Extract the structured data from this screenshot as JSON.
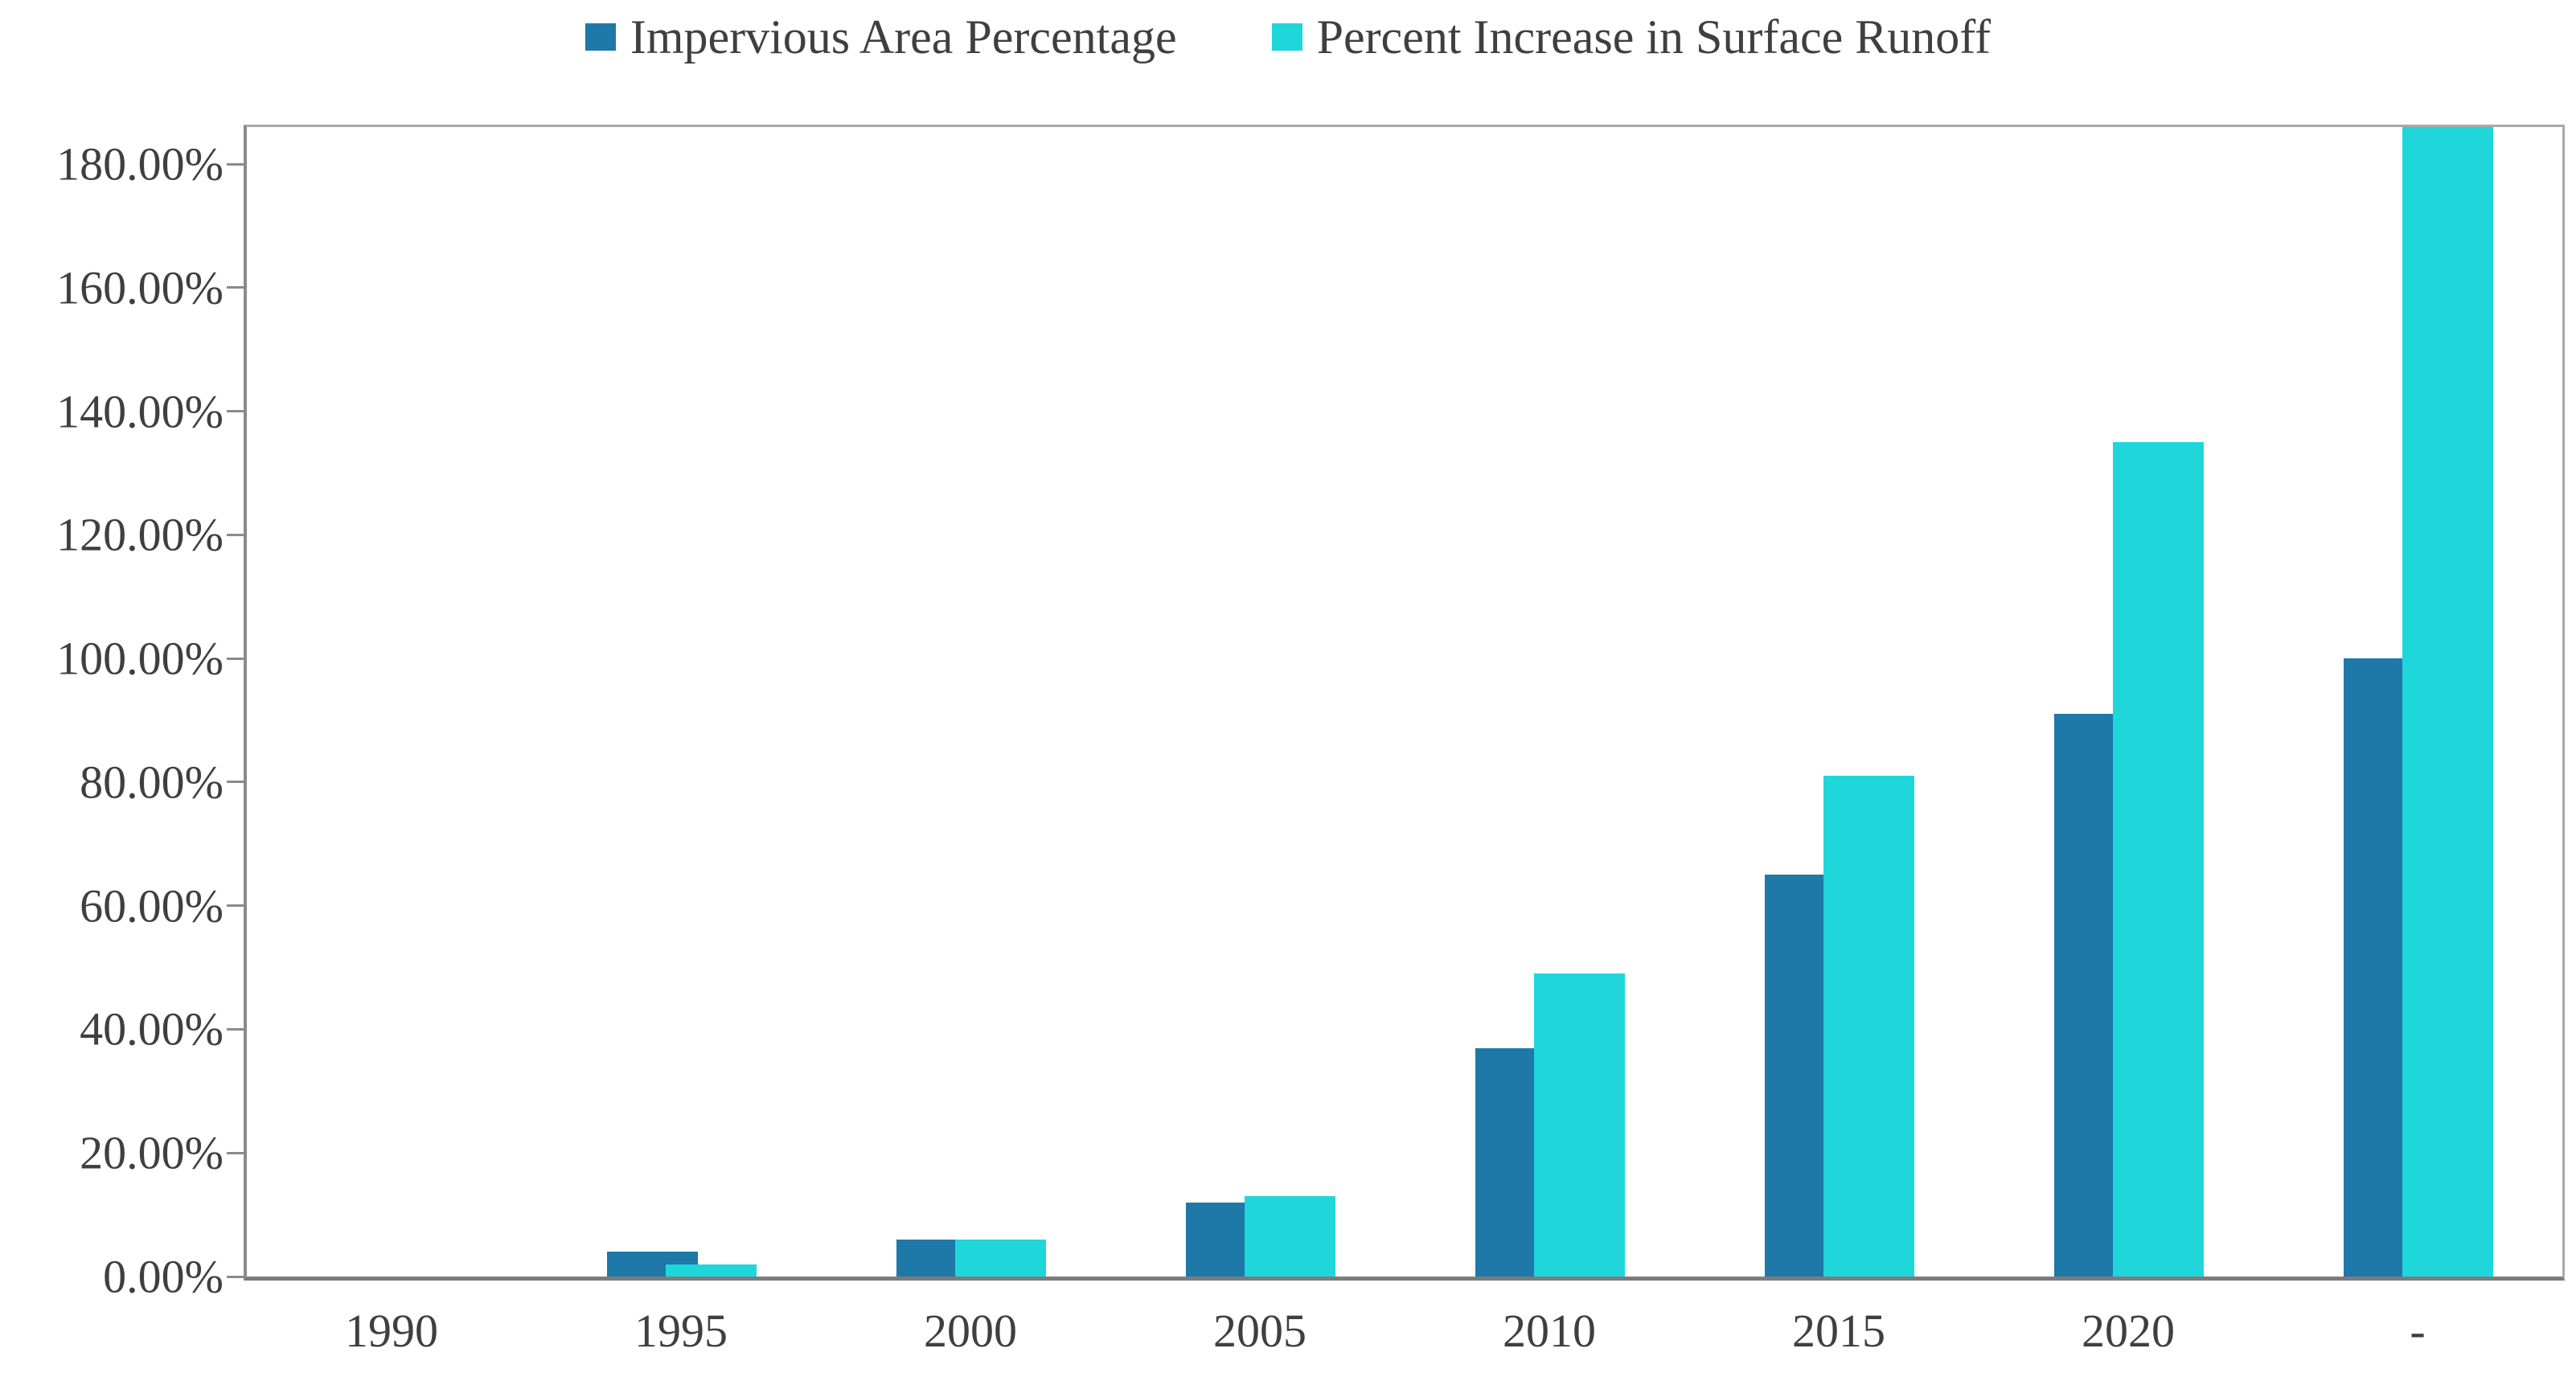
{
  "colors": {
    "background": "#FFFFFF",
    "text": "#3F3F3F",
    "frame": "#A9A9A9",
    "axis_left": "#8A8A8A",
    "axis_bottom": "#7C7C7C",
    "tick": "#8A8A8A",
    "series_blue": "#1E78A8",
    "series_cyan": "#1FD6DA"
  },
  "chart_data": {
    "type": "bar",
    "title": "",
    "xlabel": "",
    "ylabel": "",
    "categories": [
      "1990",
      "1995",
      "2000",
      "2005",
      "2010",
      "2015",
      "2020",
      "-"
    ],
    "series": [
      {
        "name": "Impervious Area Percentage",
        "color": "#1E78A8",
        "values": [
          0,
          4,
          6,
          12,
          37,
          65,
          91,
          100
        ]
      },
      {
        "name": "Percent Increase in Surface Runoff",
        "color": "#1FD6DA",
        "values": [
          0,
          2,
          6,
          13,
          49,
          81,
          135,
          186
        ]
      }
    ],
    "y_tick_labels": [
      "0.00%",
      "20.00%",
      "40.00%",
      "60.00%",
      "80.00%",
      "100.00%",
      "120.00%",
      "140.00%",
      "160.00%",
      "180.00%"
    ],
    "y_tick_values": [
      0,
      20,
      40,
      60,
      80,
      100,
      120,
      140,
      160,
      180
    ],
    "ylim": [
      0,
      186
    ],
    "grid": false,
    "legend_position": "top-center",
    "notes": "Last cyan bar is clipped flush with the top of the plot frame (~186%)."
  }
}
